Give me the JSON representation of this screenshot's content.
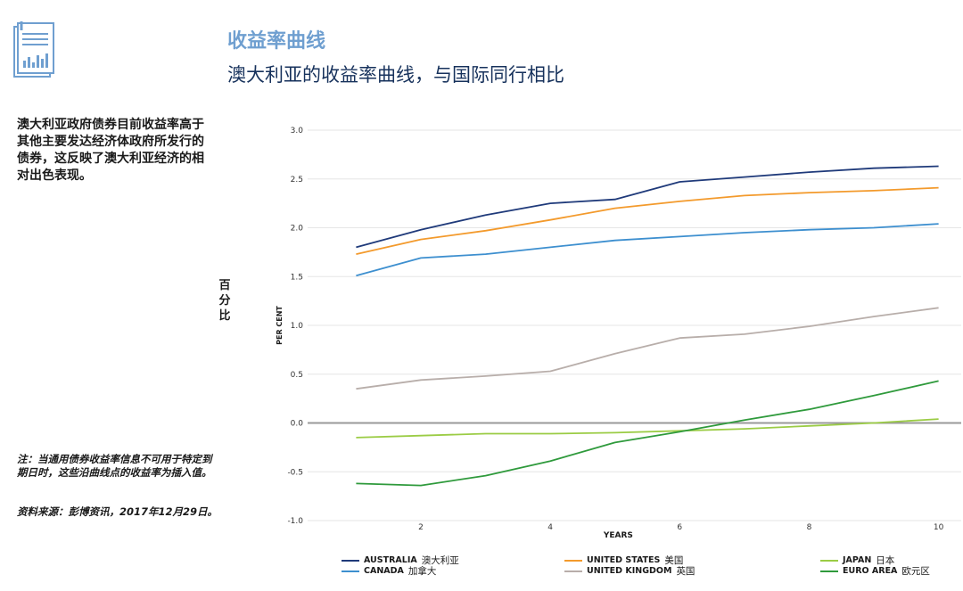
{
  "page": {
    "title": "收益率曲线",
    "subtitle": "澳大利亚的收益率曲线，与国际同行相比",
    "description": "澳大利亚政府债券目前收益率高于其他主要发达经济体政府所发行的债券，这反映了澳大利亚经济的相对出色表现。",
    "note": "注：当通用债券收益率信息不可用于特定到期日时，这些沿曲线点的收益率为插入值。",
    "source": "资料来源：彭博资讯，2017年12月29日。",
    "y_label_cn": "百分比",
    "icon": "document-chart-icon"
  },
  "chart_data": {
    "type": "line",
    "title": "澳大利亚的收益率曲线，与国际同行相比",
    "xlabel": "YEARS",
    "ylabel": "PER CENT",
    "xlim": [
      0.25,
      10.35
    ],
    "ylim": [
      -1.0,
      3.0
    ],
    "x_ticks": [
      2,
      4,
      6,
      8,
      10
    ],
    "y_ticks": [
      "3.0",
      "2.5",
      "2.0",
      "1.5",
      "1.0",
      "0.5",
      "0.0",
      "-0.5",
      "-1.0"
    ],
    "grid": true,
    "x": [
      1,
      2,
      3,
      4,
      5,
      6,
      7,
      8,
      9,
      10
    ],
    "series": [
      {
        "name": "AUSTRALIA",
        "name_cn": "澳大利亚",
        "color": "#1f3a7a",
        "values": [
          1.8,
          1.98,
          2.13,
          2.25,
          2.29,
          2.47,
          2.52,
          2.57,
          2.61,
          2.63
        ]
      },
      {
        "name": "UNITED STATES",
        "name_cn": "美国",
        "color": "#f39a2c",
        "values": [
          1.73,
          1.88,
          1.97,
          2.08,
          2.2,
          2.27,
          2.33,
          2.36,
          2.38,
          2.41
        ]
      },
      {
        "name": "CANADA",
        "name_cn": "加拿大",
        "color": "#3d8fcf",
        "values": [
          1.51,
          1.69,
          1.73,
          1.8,
          1.87,
          1.91,
          1.95,
          1.98,
          2.0,
          2.04
        ]
      },
      {
        "name": "UNITED KINGDOM",
        "name_cn": "英国",
        "color": "#b8aeaa",
        "values": [
          0.35,
          0.44,
          0.48,
          0.53,
          0.71,
          0.87,
          0.91,
          0.99,
          1.09,
          1.18
        ]
      },
      {
        "name": "JAPAN",
        "name_cn": "日本",
        "color": "#9bcc45",
        "values": [
          -0.15,
          -0.13,
          -0.11,
          -0.11,
          -0.1,
          -0.08,
          -0.06,
          -0.03,
          0.0,
          0.04
        ]
      },
      {
        "name": "EURO AREA",
        "name_cn": "欧元区",
        "color": "#2f9a3c",
        "values": [
          -0.62,
          -0.64,
          -0.54,
          -0.39,
          -0.2,
          -0.09,
          0.03,
          0.14,
          0.28,
          0.43
        ]
      }
    ],
    "zero_line_color": "#999999",
    "legend_position": "bottom"
  }
}
